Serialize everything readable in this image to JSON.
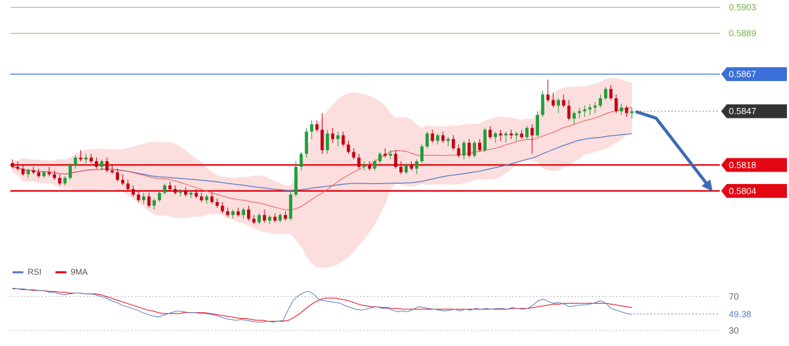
{
  "chart_data": {
    "type": "candlestick",
    "price_levels": [
      {
        "value": "0.5903",
        "kind": "target",
        "color": "#74b447"
      },
      {
        "value": "0.5889",
        "kind": "target",
        "color": "#74b447"
      },
      {
        "value": "0.5867",
        "kind": "resistance",
        "color": "#3a6fd8"
      },
      {
        "value": "0.5847",
        "kind": "current",
        "color": "#333333"
      },
      {
        "value": "0.5818",
        "kind": "support",
        "color": "#e30613"
      },
      {
        "value": "0.5804",
        "kind": "support",
        "color": "#e30613"
      }
    ],
    "colors": {
      "bull_candle": "#1f9d3a",
      "bear_candle": "#c40010",
      "bollinger_fill": "#fbd3d3",
      "ma_fast": "#ef5a5a",
      "ma_slow": "#5b7fc7",
      "forecast_arrow": "#3d6bb3"
    },
    "price_range": [
      0.5767,
      0.5907
    ],
    "candles": [
      [
        0.5819,
        0.5821,
        0.5816,
        0.5817
      ],
      [
        0.5817,
        0.582,
        0.5815,
        0.5816
      ],
      [
        0.5816,
        0.5818,
        0.5812,
        0.5813
      ],
      [
        0.5813,
        0.5816,
        0.5811,
        0.5815
      ],
      [
        0.5815,
        0.5817,
        0.5813,
        0.5814
      ],
      [
        0.5814,
        0.5816,
        0.5811,
        0.5812
      ],
      [
        0.5812,
        0.5815,
        0.5811,
        0.5814
      ],
      [
        0.5814,
        0.5817,
        0.5812,
        0.5813
      ],
      [
        0.5813,
        0.5815,
        0.581,
        0.5811
      ],
      [
        0.5811,
        0.5813,
        0.5807,
        0.5808
      ],
      [
        0.5808,
        0.5812,
        0.5807,
        0.5811
      ],
      [
        0.5811,
        0.5819,
        0.581,
        0.5818
      ],
      [
        0.5818,
        0.5823,
        0.5816,
        0.5822
      ],
      [
        0.5822,
        0.5826,
        0.582,
        0.5821
      ],
      [
        0.5821,
        0.5824,
        0.5819,
        0.5822
      ],
      [
        0.5822,
        0.5824,
        0.5819,
        0.582
      ],
      [
        0.582,
        0.5822,
        0.5816,
        0.5817
      ],
      [
        0.5817,
        0.5821,
        0.5815,
        0.582
      ],
      [
        0.582,
        0.5822,
        0.5814,
        0.5815
      ],
      [
        0.5815,
        0.5818,
        0.5813,
        0.5814
      ],
      [
        0.5814,
        0.5816,
        0.5809,
        0.581
      ],
      [
        0.581,
        0.5813,
        0.5807,
        0.5808
      ],
      [
        0.5808,
        0.581,
        0.5804,
        0.5805
      ],
      [
        0.5805,
        0.5807,
        0.5801,
        0.5802
      ],
      [
        0.5802,
        0.5804,
        0.5798,
        0.5799
      ],
      [
        0.5799,
        0.5803,
        0.5797,
        0.5801
      ],
      [
        0.5801,
        0.5803,
        0.5795,
        0.5796
      ],
      [
        0.5796,
        0.58,
        0.5794,
        0.5799
      ],
      [
        0.5799,
        0.5804,
        0.5798,
        0.5803
      ],
      [
        0.5803,
        0.5808,
        0.5802,
        0.5807
      ],
      [
        0.5807,
        0.5809,
        0.5804,
        0.5805
      ],
      [
        0.5805,
        0.5807,
        0.5802,
        0.5803
      ],
      [
        0.5803,
        0.5805,
        0.5801,
        0.5804
      ],
      [
        0.5804,
        0.5806,
        0.5801,
        0.5802
      ],
      [
        0.5802,
        0.5804,
        0.58,
        0.5803
      ],
      [
        0.5803,
        0.5805,
        0.58,
        0.5801
      ],
      [
        0.5801,
        0.5803,
        0.5798,
        0.5799
      ],
      [
        0.5799,
        0.5802,
        0.5797,
        0.5801
      ],
      [
        0.5801,
        0.5803,
        0.5797,
        0.5798
      ],
      [
        0.5798,
        0.58,
        0.5795,
        0.5796
      ],
      [
        0.5796,
        0.5798,
        0.5792,
        0.5793
      ],
      [
        0.5793,
        0.5795,
        0.579,
        0.5791
      ],
      [
        0.5791,
        0.5794,
        0.5789,
        0.5793
      ],
      [
        0.5793,
        0.5795,
        0.579,
        0.5791
      ],
      [
        0.5791,
        0.5795,
        0.5789,
        0.5794
      ],
      [
        0.5794,
        0.5796,
        0.5788,
        0.5789
      ],
      [
        0.5789,
        0.5791,
        0.5786,
        0.5787
      ],
      [
        0.5787,
        0.5792,
        0.5786,
        0.5791
      ],
      [
        0.5791,
        0.5794,
        0.5787,
        0.5788
      ],
      [
        0.5788,
        0.5791,
        0.5786,
        0.579
      ],
      [
        0.579,
        0.5792,
        0.5787,
        0.5788
      ],
      [
        0.5788,
        0.5792,
        0.5787,
        0.5791
      ],
      [
        0.5791,
        0.5793,
        0.5788,
        0.5789
      ],
      [
        0.5789,
        0.5804,
        0.5788,
        0.5802
      ],
      [
        0.5802,
        0.582,
        0.5801,
        0.5817
      ],
      [
        0.5817,
        0.5825,
        0.5815,
        0.5824
      ],
      [
        0.5824,
        0.5838,
        0.5822,
        0.5836
      ],
      [
        0.5836,
        0.5842,
        0.5832,
        0.584
      ],
      [
        0.584,
        0.5842,
        0.5836,
        0.5837
      ],
      [
        0.5837,
        0.5846,
        0.5824,
        0.5826
      ],
      [
        0.5826,
        0.5837,
        0.5824,
        0.5835
      ],
      [
        0.5835,
        0.5838,
        0.583,
        0.5832
      ],
      [
        0.5832,
        0.5836,
        0.5828,
        0.5834
      ],
      [
        0.5834,
        0.5836,
        0.5828,
        0.5829
      ],
      [
        0.5829,
        0.5831,
        0.5824,
        0.5825
      ],
      [
        0.5825,
        0.5827,
        0.5821,
        0.5822
      ],
      [
        0.5822,
        0.5824,
        0.5816,
        0.5817
      ],
      [
        0.5817,
        0.582,
        0.5815,
        0.5818
      ],
      [
        0.5818,
        0.582,
        0.5815,
        0.5816
      ],
      [
        0.5816,
        0.5821,
        0.5815,
        0.582
      ],
      [
        0.582,
        0.5825,
        0.5819,
        0.5824
      ],
      [
        0.5824,
        0.5827,
        0.5822,
        0.5823
      ],
      [
        0.5823,
        0.5826,
        0.5821,
        0.5824
      ],
      [
        0.5824,
        0.5826,
        0.5816,
        0.5817
      ],
      [
        0.5817,
        0.582,
        0.5813,
        0.5814
      ],
      [
        0.5814,
        0.5819,
        0.5813,
        0.5818
      ],
      [
        0.5818,
        0.582,
        0.5815,
        0.5816
      ],
      [
        0.5816,
        0.5821,
        0.5813,
        0.582
      ],
      [
        0.582,
        0.5829,
        0.5819,
        0.5828
      ],
      [
        0.5828,
        0.5836,
        0.5827,
        0.5835
      ],
      [
        0.5835,
        0.5837,
        0.583,
        0.5831
      ],
      [
        0.5831,
        0.5835,
        0.5829,
        0.5834
      ],
      [
        0.5834,
        0.5836,
        0.583,
        0.5831
      ],
      [
        0.5831,
        0.5833,
        0.5828,
        0.5832
      ],
      [
        0.5832,
        0.5834,
        0.5826,
        0.5827
      ],
      [
        0.5827,
        0.5829,
        0.5822,
        0.5823
      ],
      [
        0.5823,
        0.5831,
        0.5821,
        0.583
      ],
      [
        0.583,
        0.5832,
        0.5822,
        0.5823
      ],
      [
        0.5823,
        0.5831,
        0.5822,
        0.583
      ],
      [
        0.583,
        0.5832,
        0.5825,
        0.5826
      ],
      [
        0.5826,
        0.5838,
        0.5825,
        0.5837
      ],
      [
        0.5837,
        0.5839,
        0.5832,
        0.5833
      ],
      [
        0.5833,
        0.5836,
        0.583,
        0.5835
      ],
      [
        0.5835,
        0.5837,
        0.5831,
        0.5834
      ],
      [
        0.5834,
        0.5836,
        0.583,
        0.5835
      ],
      [
        0.5835,
        0.5837,
        0.5832,
        0.5834
      ],
      [
        0.5834,
        0.5836,
        0.5831,
        0.5835
      ],
      [
        0.5835,
        0.5837,
        0.5832,
        0.5833
      ],
      [
        0.5833,
        0.5839,
        0.5832,
        0.5838
      ],
      [
        0.5838,
        0.584,
        0.5824,
        0.5834
      ],
      [
        0.5834,
        0.5847,
        0.5833,
        0.5845
      ],
      [
        0.5845,
        0.5858,
        0.5844,
        0.5856
      ],
      [
        0.5856,
        0.5864,
        0.5852,
        0.5853
      ],
      [
        0.5853,
        0.5857,
        0.5849,
        0.585
      ],
      [
        0.585,
        0.5854,
        0.5846,
        0.5853
      ],
      [
        0.5853,
        0.5856,
        0.5849,
        0.585
      ],
      [
        0.585,
        0.5853,
        0.5842,
        0.5843
      ],
      [
        0.5843,
        0.5847,
        0.584,
        0.5846
      ],
      [
        0.5846,
        0.5849,
        0.5843,
        0.5847
      ],
      [
        0.5847,
        0.585,
        0.5844,
        0.5848
      ],
      [
        0.5848,
        0.5851,
        0.5845,
        0.5849
      ],
      [
        0.5849,
        0.5852,
        0.5846,
        0.585
      ],
      [
        0.585,
        0.5856,
        0.5849,
        0.5854
      ],
      [
        0.5854,
        0.586,
        0.5853,
        0.5859
      ],
      [
        0.5859,
        0.5861,
        0.5853,
        0.5854
      ],
      [
        0.5854,
        0.5856,
        0.5846,
        0.5847
      ],
      [
        0.5847,
        0.5851,
        0.5845,
        0.5849
      ],
      [
        0.5849,
        0.585,
        0.5844,
        0.5846
      ],
      [
        0.5846,
        0.5849,
        0.5843,
        0.5847
      ]
    ],
    "rsi": {
      "labels": [
        "70",
        "49.38",
        "30"
      ],
      "current": 49.38,
      "range": [
        20,
        85
      ],
      "rsi_values": [
        80,
        79,
        79,
        78,
        78,
        77,
        77,
        75,
        75,
        73,
        72,
        73,
        74,
        74,
        73,
        73,
        72,
        70,
        68,
        65,
        63,
        60,
        58,
        56,
        54,
        51,
        49,
        47,
        46,
        48,
        50,
        52,
        53,
        52,
        51,
        51,
        50,
        50,
        49,
        48,
        46,
        44,
        43,
        42,
        43,
        42,
        41,
        40,
        40,
        41,
        40,
        41,
        42,
        55,
        66,
        71,
        75,
        76,
        72,
        66,
        65,
        64,
        63,
        62,
        59,
        57,
        55,
        54,
        55,
        57,
        58,
        56,
        56,
        54,
        52,
        53,
        52,
        55,
        58,
        57,
        56,
        55,
        54,
        53,
        54,
        55,
        53,
        55,
        54,
        56,
        55,
        56,
        55,
        56,
        56,
        55,
        57,
        56,
        55,
        56,
        60,
        65,
        67,
        64,
        62,
        63,
        61,
        58,
        59,
        60,
        60,
        61,
        63,
        65,
        62,
        56,
        54,
        52,
        50,
        49
      ],
      "ma_values": [
        79,
        79,
        78,
        78,
        77,
        77,
        77,
        76,
        76,
        75,
        75,
        74,
        74,
        74,
        73,
        73,
        73,
        72,
        70,
        68,
        66,
        64,
        62,
        60,
        58,
        56,
        54,
        53,
        51,
        50,
        50,
        50,
        50,
        51,
        51,
        51,
        51,
        51,
        50,
        49,
        48,
        47,
        46,
        45,
        44,
        44,
        43,
        42,
        42,
        41,
        41,
        41,
        41,
        42,
        45,
        49,
        54,
        59,
        63,
        66,
        68,
        68,
        68,
        67,
        66,
        64,
        62,
        60,
        59,
        58,
        58,
        57,
        57,
        56,
        56,
        55,
        55,
        55,
        55,
        55,
        55,
        55,
        55,
        55,
        55,
        55,
        55,
        55,
        55,
        55,
        55,
        55,
        55,
        55,
        55,
        55,
        56,
        56,
        56,
        56,
        57,
        58,
        59,
        60,
        61,
        61,
        62,
        62,
        62,
        62,
        62,
        62,
        62,
        62,
        62,
        61,
        60,
        59,
        58,
        57
      ]
    },
    "legend": [
      {
        "label": "RSI",
        "color": "#5b7fc7"
      },
      {
        "label": "9MA",
        "color": "#e30613"
      }
    ]
  }
}
